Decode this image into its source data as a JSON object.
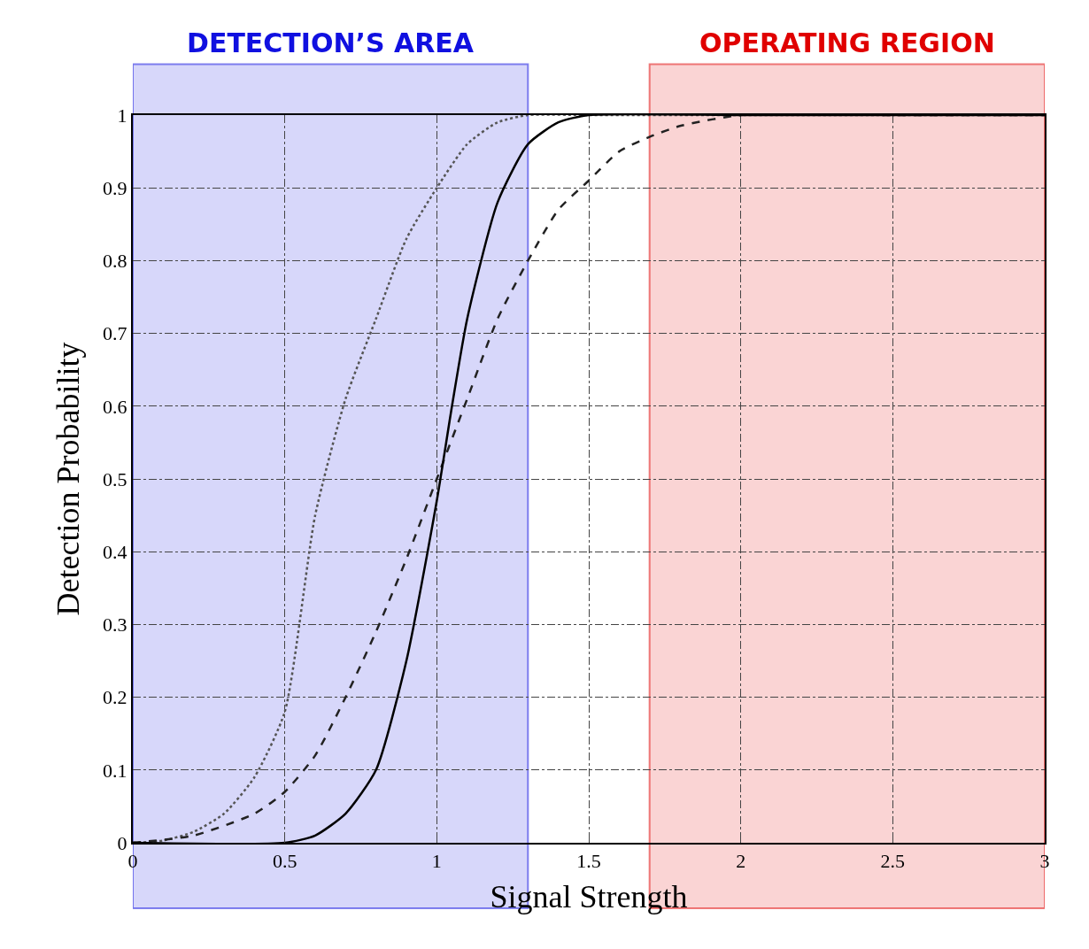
{
  "chart_data": {
    "type": "line",
    "xlabel": "Signal Strength",
    "ylabel": "Detection Probability",
    "xlim": [
      0,
      3
    ],
    "ylim": [
      0,
      1
    ],
    "xticks": [
      0,
      0.5,
      1,
      1.5,
      2,
      2.5,
      3
    ],
    "yticks": [
      0,
      0.1,
      0.2,
      0.3,
      0.4,
      0.5,
      0.6,
      0.7,
      0.8,
      0.9,
      1
    ],
    "grid": true,
    "marker": "none",
    "series": [
      {
        "color": "#555555",
        "line_style": "dotted",
        "x": [
          0,
          0.1,
          0.2,
          0.3,
          0.4,
          0.5,
          0.6,
          0.7,
          0.8,
          0.9,
          1.0,
          1.1,
          1.2,
          1.3,
          1.5,
          2,
          2.5,
          3
        ],
        "values": [
          0,
          0.003,
          0.015,
          0.04,
          0.09,
          0.18,
          0.45,
          0.61,
          0.72,
          0.83,
          0.9,
          0.96,
          0.99,
          1,
          1,
          1,
          1,
          1
        ]
      },
      {
        "color": "#222222",
        "line_style": "dashed",
        "x": [
          0,
          0.2,
          0.4,
          0.5,
          0.6,
          0.7,
          0.8,
          0.9,
          1.0,
          1.1,
          1.2,
          1.3,
          1.4,
          1.5,
          1.6,
          1.7,
          1.8,
          2,
          2.5,
          3
        ],
        "values": [
          0,
          0.01,
          0.04,
          0.07,
          0.12,
          0.2,
          0.29,
          0.39,
          0.5,
          0.61,
          0.72,
          0.8,
          0.87,
          0.91,
          0.95,
          0.97,
          0.985,
          1,
          1,
          1
        ]
      },
      {
        "color": "#000000",
        "line_style": "solid",
        "x": [
          0,
          0.5,
          0.6,
          0.7,
          0.8,
          0.9,
          1.0,
          1.05,
          1.1,
          1.2,
          1.3,
          1.4,
          1.5,
          2,
          2.5,
          3
        ],
        "values": [
          0,
          0,
          0.01,
          0.04,
          0.1,
          0.25,
          0.47,
          0.6,
          0.72,
          0.88,
          0.96,
          0.99,
          1,
          1,
          1,
          1
        ]
      }
    ],
    "bands": [
      {
        "axis": "x",
        "from": 0,
        "to": 1.3,
        "label": "DETECTION’S AREA",
        "color": "#1010e0"
      },
      {
        "axis": "x",
        "from": 1.7,
        "to": 3,
        "label": "OPERATING REGION",
        "color": "#e00000"
      }
    ]
  }
}
